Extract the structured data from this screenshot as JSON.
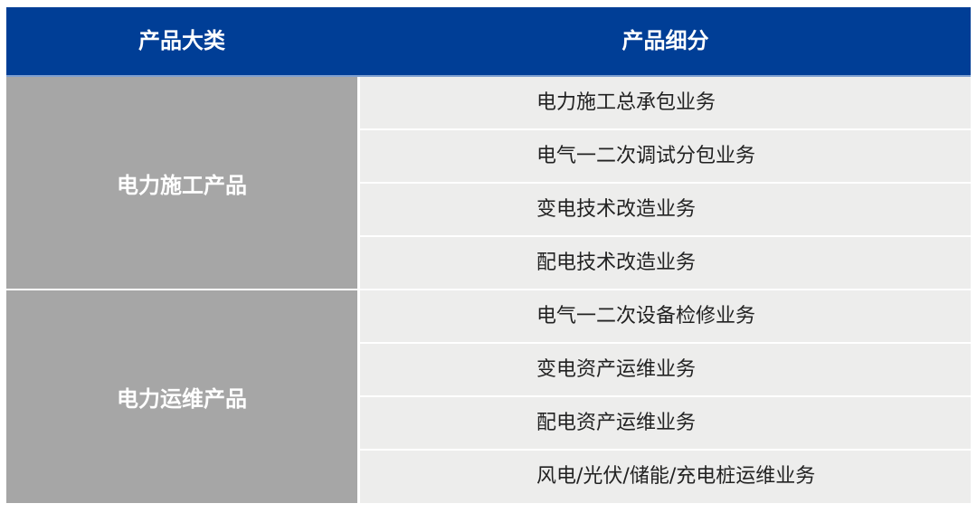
{
  "header": {
    "col1": "产品大类",
    "col2": "产品细分"
  },
  "groups": [
    {
      "category": "电力施工产品",
      "items": [
        "电力施工总承包业务",
        "电气一二次调试分包业务",
        "变电技术改造业务",
        "配电技术改造业务"
      ]
    },
    {
      "category": "电力运维产品",
      "items": [
        "电气一二次设备检修业务",
        "变电资产运维业务",
        "配电资产运维业务",
        "风电/光伏/储能/充电桩运维业务"
      ]
    }
  ],
  "colors": {
    "header": "#003E96",
    "category": "#A6A6A6",
    "row": "#EDEDEC"
  }
}
